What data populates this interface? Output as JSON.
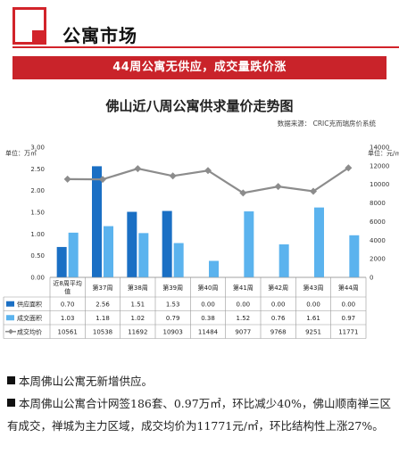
{
  "header": {
    "title": "公寓市场"
  },
  "banner": {
    "text": "44周公寓无供应，成交量跌价涨"
  },
  "chart_data": {
    "type": "bar",
    "title": "佛山近八周公寓供求量价走势图",
    "source": "数据来源：  CRIC克而瑞房价系统",
    "categories": [
      "近8周平均值",
      "第37周",
      "第38周",
      "第39周",
      "第40周",
      "第41周",
      "第42周",
      "第43周",
      "第44周"
    ],
    "series": [
      {
        "name": "供应面积",
        "type": "bar",
        "axis": "left",
        "color": "#1a6fc4",
        "values": [
          0.7,
          2.56,
          1.51,
          1.53,
          0.0,
          0.0,
          0.0,
          0.0,
          0.0
        ],
        "labels": [
          "0.70",
          "2.56",
          "1.51",
          "1.53",
          "0.00",
          "0.00",
          "0.00",
          "0.00",
          "0.00"
        ]
      },
      {
        "name": "成交面积",
        "type": "bar",
        "axis": "left",
        "color": "#5bb3ee",
        "values": [
          1.03,
          1.18,
          1.02,
          0.79,
          0.38,
          1.52,
          0.76,
          1.61,
          0.97
        ],
        "labels": [
          "1.03",
          "1.18",
          "1.02",
          "0.79",
          "0.38",
          "1.52",
          "0.76",
          "1.61",
          "0.97"
        ]
      },
      {
        "name": "成交均价",
        "type": "line",
        "axis": "right",
        "color": "#8c8c8c",
        "values": [
          10561,
          10538,
          11692,
          10903,
          11484,
          9077,
          9768,
          9251,
          11771
        ],
        "labels": [
          "10561",
          "10538",
          "11692",
          "10903",
          "11484",
          "9077",
          "9768",
          "9251",
          "11771"
        ]
      }
    ],
    "y_left": {
      "label": "单位：万㎡",
      "ylim": [
        0,
        3.0
      ],
      "ticks": [
        "0.00",
        "0.50",
        "1.00",
        "1.50",
        "2.00",
        "2.50",
        "3.00"
      ]
    },
    "y_right": {
      "label": "单位：元/㎡",
      "ylim": [
        0,
        14000
      ],
      "ticks": [
        "0",
        "2000",
        "4000",
        "6000",
        "8000",
        "10000",
        "12000",
        "14000"
      ]
    },
    "grid": false,
    "legend": "table-below"
  },
  "bullets": [
    "本周佛山公寓无新增供应。",
    "本周佛山公寓合计网签186套、0.97万㎡，环比减少40%，佛山顺南禅三区有成交，禅城为主力区域，成交均价为11771元/㎡，环比结构性上涨27%。"
  ]
}
